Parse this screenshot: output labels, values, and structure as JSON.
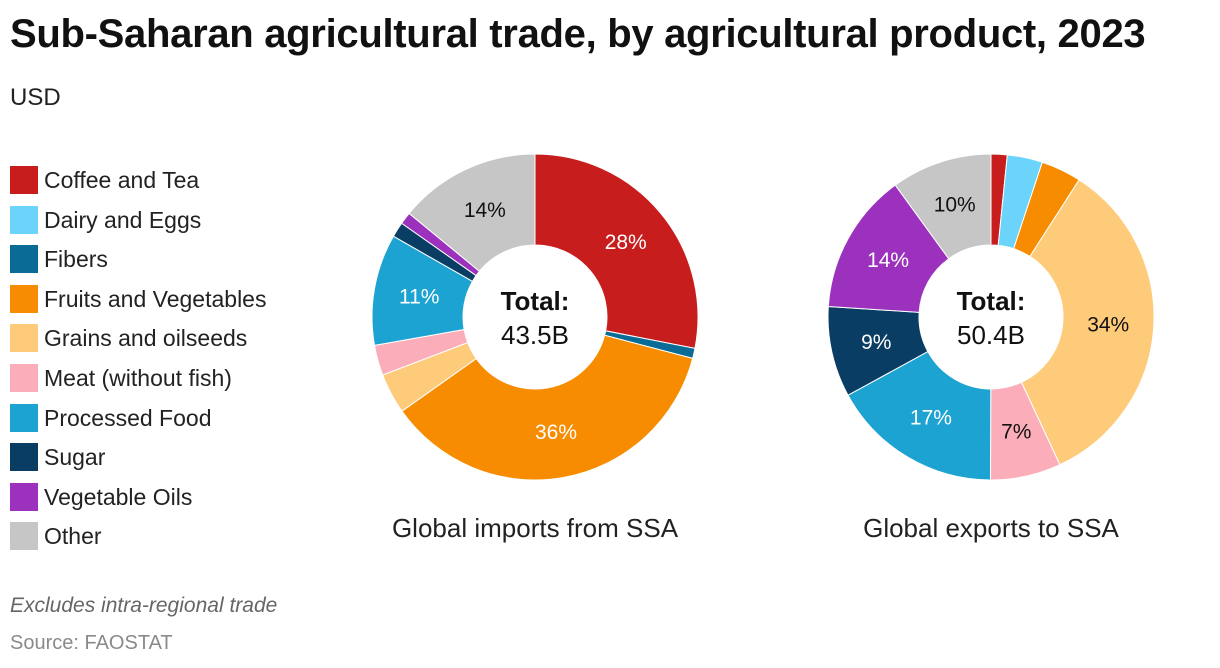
{
  "title": "Sub-Saharan agricultural trade, by agricultural product, 2023",
  "subtitle": "USD",
  "footnote": "Excludes intra-regional trade",
  "source": "Source: FAOSTAT",
  "legend": [
    {
      "name": "Coffee and Tea",
      "color": "#c81d1d"
    },
    {
      "name": "Dairy and Eggs",
      "color": "#6cd4fb"
    },
    {
      "name": "Fibers",
      "color": "#0a6b96"
    },
    {
      "name": "Fruits and Vegetables",
      "color": "#f78c00"
    },
    {
      "name": "Grains and oilseeds",
      "color": "#fecb7a"
    },
    {
      "name": "Meat (without fish)",
      "color": "#fbaeba"
    },
    {
      "name": "Processed Food",
      "color": "#1ca3d1"
    },
    {
      "name": "Sugar",
      "color": "#0a3d63"
    },
    {
      "name": "Vegetable Oils",
      "color": "#9b31bc"
    },
    {
      "name": "Other",
      "color": "#c6c6c6"
    }
  ],
  "chart_data": [
    {
      "type": "pie",
      "variant": "donut",
      "caption": "Global imports from SSA",
      "center_title": "Total:",
      "center_value": "43.5B",
      "categories": [
        "Coffee and Tea",
        "Dairy and Eggs",
        "Fibers",
        "Fruits and Vegetables",
        "Grains and oilseeds",
        "Meat (without fish)",
        "Processed Food",
        "Sugar",
        "Vegetable Oils",
        "Other"
      ],
      "values": [
        28,
        0,
        1,
        36,
        4,
        3,
        11,
        1.5,
        1.2,
        14
      ],
      "data_labels": [
        "28%",
        "",
        "",
        "36%",
        "",
        "",
        "11%",
        "",
        "",
        "14%"
      ]
    },
    {
      "type": "pie",
      "variant": "donut",
      "caption": "Global exports to SSA",
      "center_title": "Total:",
      "center_value": "50.4B",
      "categories": [
        "Coffee and Tea",
        "Dairy and Eggs",
        "Fibers",
        "Fruits and Vegetables",
        "Grains and oilseeds",
        "Meat (without fish)",
        "Processed Food",
        "Sugar",
        "Vegetable Oils",
        "Other"
      ],
      "values": [
        1.6,
        3.5,
        0,
        4,
        34,
        7,
        17,
        9,
        14,
        10
      ],
      "data_labels": [
        "",
        "",
        "",
        "",
        "34%",
        "7%",
        "17%",
        "9%",
        "14%",
        "10%"
      ]
    }
  ]
}
